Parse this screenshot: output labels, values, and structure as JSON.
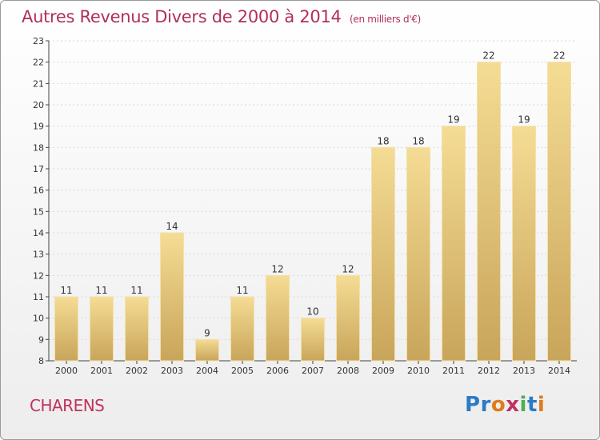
{
  "header": {
    "title": "Autres Revenus Divers de 2000 à 2014",
    "unit": "(en milliers d'€)"
  },
  "footer": {
    "place": "CHARENS",
    "logo_text": "Proxiti",
    "logo_colors": [
      "#2b7bc4",
      "#2b7bc4",
      "#e07b1a",
      "#c0325e",
      "#4caf50",
      "#2b7bc4",
      "#e07b1a"
    ]
  },
  "colors": {
    "bar_light": "#f5dc94",
    "bar_dark": "#c8a55a",
    "bar_top": "#f3e2ad",
    "axis": "#444444",
    "grid": "#d8d8d8",
    "text": "#333333"
  },
  "chart_data": {
    "type": "bar",
    "title": "Autres Revenus Divers de 2000 à 2014",
    "xlabel": "",
    "ylabel": "",
    "ylim": [
      8,
      23
    ],
    "yticks": [
      8,
      9,
      10,
      11,
      12,
      13,
      14,
      15,
      16,
      17,
      18,
      19,
      20,
      21,
      22,
      23
    ],
    "grid": true,
    "legend": "none",
    "categories": [
      "2000",
      "2001",
      "2002",
      "2003",
      "2004",
      "2005",
      "2006",
      "2007",
      "2008",
      "2009",
      "2010",
      "2011",
      "2012",
      "2013",
      "2014"
    ],
    "values": [
      11,
      11,
      11,
      14,
      9,
      11,
      12,
      10,
      12,
      18,
      18,
      19,
      22,
      19,
      22
    ]
  }
}
